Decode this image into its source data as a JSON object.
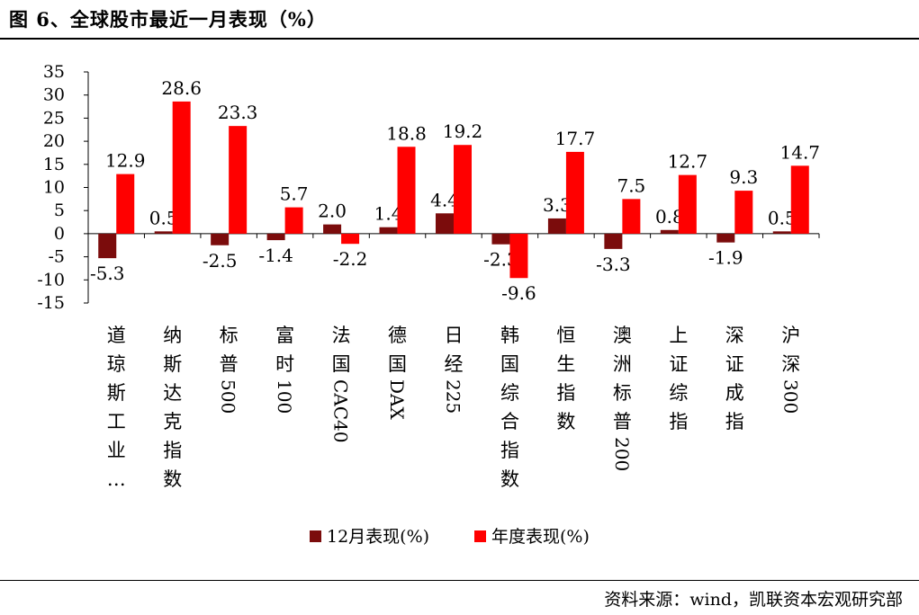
{
  "title": "图 6、全球股市最近一月表现（%）",
  "source": "资料来源：wind，凯联资本宏观研究部",
  "chart_data": {
    "type": "bar",
    "categories": [
      "道琼斯工业…",
      "纳斯达克指数",
      "标普500",
      "富时100",
      "法国CAC40",
      "德国DAX",
      "日经225",
      "韩国综合指数",
      "恒生指数",
      "澳洲标普200",
      "上证综指",
      "深证成指",
      "沪深300"
    ],
    "category_labels": [
      [
        "道",
        "琼",
        "斯",
        "工",
        "业",
        "…"
      ],
      [
        "纳",
        "斯",
        "达",
        "克",
        "指",
        "数"
      ],
      [
        "标",
        "普",
        "500"
      ],
      [
        "富",
        "时",
        "100"
      ],
      [
        "法",
        "国",
        "CAC40"
      ],
      [
        "德",
        "国",
        "DAX"
      ],
      [
        "日",
        "经",
        "225"
      ],
      [
        "韩",
        "国",
        "综",
        "合",
        "指",
        "数"
      ],
      [
        "恒",
        "生",
        "指",
        "数"
      ],
      [
        "澳",
        "洲",
        "标",
        "普",
        "200"
      ],
      [
        "上",
        "证",
        "综",
        "指"
      ],
      [
        "深",
        "证",
        "成",
        "指"
      ],
      [
        "沪",
        "深",
        "300"
      ]
    ],
    "series": [
      {
        "name": "12月表现(%)",
        "color": "#7B0C0C",
        "values": [
          -5.3,
          0.5,
          -2.5,
          -1.4,
          2.0,
          1.4,
          4.4,
          -2.3,
          3.3,
          -3.3,
          0.8,
          -1.9,
          0.5
        ],
        "labels": [
          "-5.3",
          "0.5",
          "-2.5",
          "-1.4",
          "2.0",
          "1.4",
          "4.4",
          "-2.3",
          "3.3",
          "-3.3",
          "0.8",
          "-1.9",
          "0.5"
        ]
      },
      {
        "name": "年度表现(%)",
        "color": "#FF0000",
        "values": [
          12.9,
          28.6,
          23.3,
          5.7,
          -2.2,
          18.8,
          19.2,
          -9.6,
          17.7,
          7.5,
          12.7,
          9.3,
          14.7
        ],
        "labels": [
          "12.9",
          "28.6",
          "23.3",
          "5.7",
          "-2.2",
          "18.8",
          "19.2",
          "-9.6",
          "17.7",
          "7.5",
          "12.7",
          "9.3",
          "14.7"
        ]
      }
    ],
    "yticks": [
      "35",
      "30",
      "25",
      "20",
      "15",
      "10",
      "5",
      "0",
      "-5",
      "-10",
      "-15"
    ],
    "ylim": [
      -15,
      35
    ],
    "legend": "bottom",
    "grid": false
  }
}
